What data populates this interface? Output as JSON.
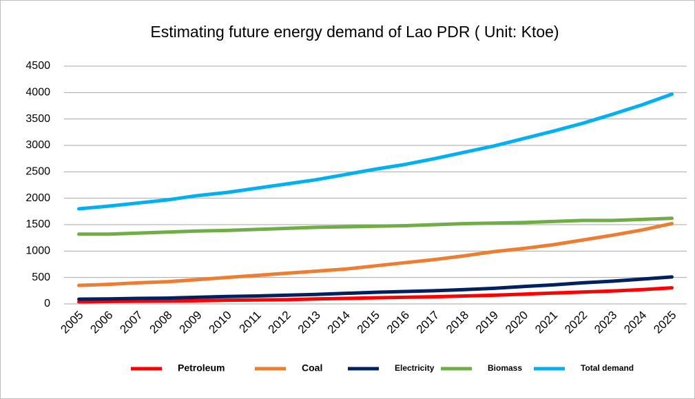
{
  "chart_data": {
    "type": "line",
    "title": "Estimating future energy demand  of Lao PDR ( Unit: Ktoe)",
    "categories": [
      "2005",
      "2006",
      "2007",
      "2008",
      "2009",
      "2010",
      "2011",
      "2012",
      "2013",
      "2014",
      "2015",
      "2016",
      "2017",
      "2018",
      "2019",
      "2020",
      "2021",
      "2022",
      "2023",
      "2024",
      "2025"
    ],
    "series": [
      {
        "name": "Petroleum",
        "color": "#ff0000",
        "values": [
          40,
          45,
          50,
          55,
          60,
          70,
          75,
          80,
          95,
          105,
          115,
          125,
          135,
          150,
          165,
          185,
          205,
          225,
          245,
          270,
          305
        ]
      },
      {
        "name": "Coal",
        "color": "#ed7d31",
        "values": [
          350,
          370,
          400,
          420,
          460,
          500,
          540,
          580,
          620,
          660,
          720,
          780,
          840,
          910,
          990,
          1050,
          1120,
          1210,
          1300,
          1400,
          1520
        ]
      },
      {
        "name": "Electricity",
        "color": "#002060",
        "values": [
          90,
          95,
          105,
          110,
          125,
          140,
          150,
          165,
          180,
          200,
          220,
          235,
          250,
          270,
          295,
          330,
          360,
          400,
          430,
          470,
          510
        ]
      },
      {
        "name": "Biomass",
        "color": "#70ad47",
        "values": [
          1320,
          1320,
          1340,
          1360,
          1380,
          1390,
          1410,
          1430,
          1450,
          1460,
          1470,
          1480,
          1500,
          1520,
          1530,
          1540,
          1560,
          1580,
          1580,
          1600,
          1620
        ]
      },
      {
        "name": "Total demand",
        "color": "#00b0f0",
        "values": [
          1800,
          1850,
          1910,
          1970,
          2050,
          2110,
          2190,
          2270,
          2350,
          2450,
          2550,
          2640,
          2750,
          2870,
          2990,
          3130,
          3270,
          3420,
          3590,
          3770,
          3970
        ]
      }
    ],
    "ylim": [
      0,
      4500
    ],
    "yticks": [
      0,
      500,
      1000,
      1500,
      2000,
      2500,
      3000,
      3500,
      4000,
      4500
    ],
    "grid": true,
    "legend": "bottom"
  }
}
